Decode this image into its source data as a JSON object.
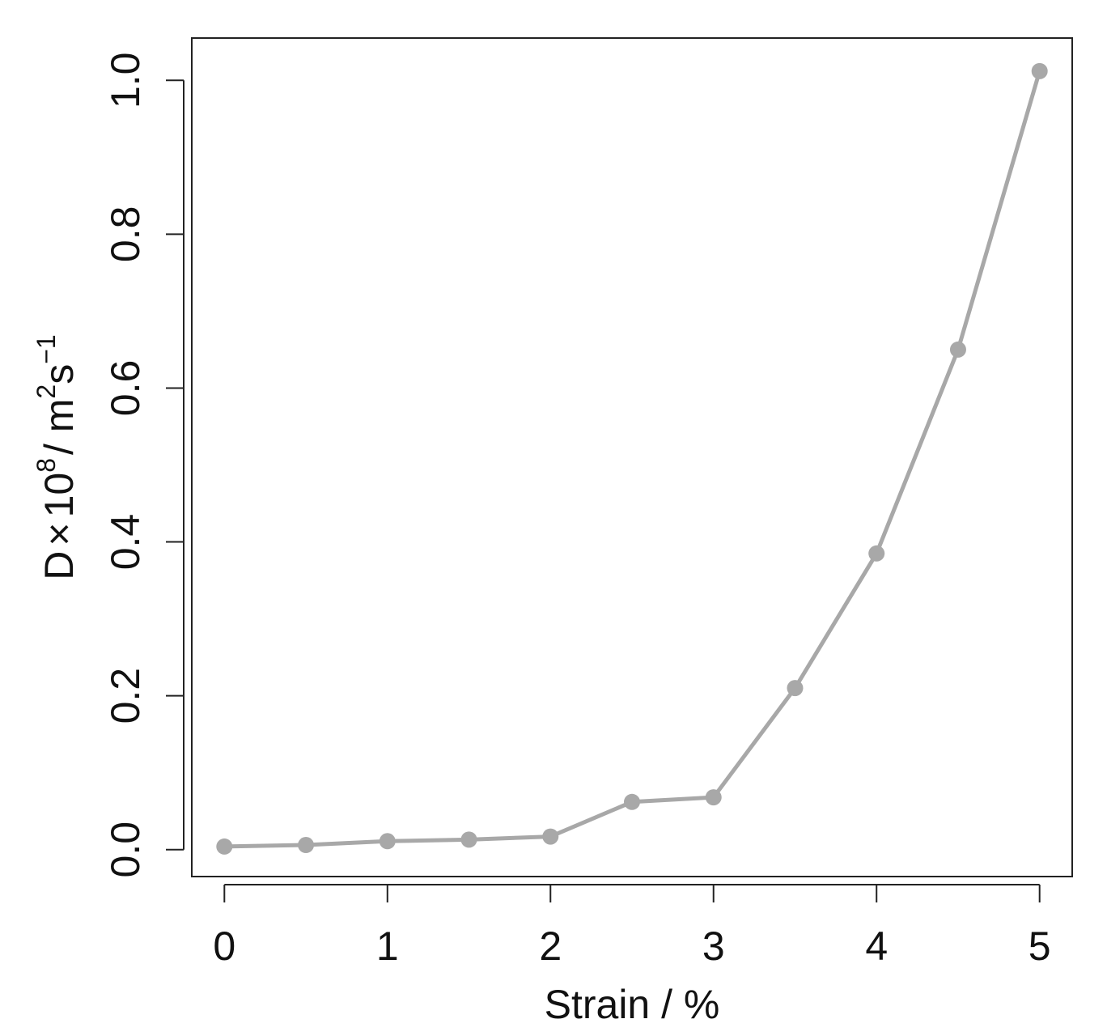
{
  "chart_data": {
    "type": "line",
    "title": "",
    "xlabel": "Strain / %",
    "ylabel": {
      "base": "D",
      "times": "×",
      "ten": "10",
      "exp8": "8",
      "unit_m": "/ m",
      "exp2": "2",
      "unit_s": "s",
      "exp_neg1": "−1"
    },
    "xlim": [
      -0.2,
      5.2
    ],
    "ylim": [
      -0.035,
      1.055
    ],
    "xticks": [
      0,
      1,
      2,
      3,
      4,
      5
    ],
    "xtick_labels": [
      "0",
      "1",
      "2",
      "3",
      "4",
      "5"
    ],
    "yticks": [
      0.0,
      0.2,
      0.4,
      0.6,
      0.8,
      1.0
    ],
    "ytick_labels": [
      "0.0",
      "0.2",
      "0.4",
      "0.6",
      "0.8",
      "1.0"
    ],
    "grid": false,
    "legend": "none",
    "series": [
      {
        "color": "#a8a8a8",
        "x": [
          0,
          0.5,
          1,
          1.5,
          2,
          2.5,
          3,
          3.5,
          4,
          4.5,
          5
        ],
        "y": [
          0.004,
          0.006,
          0.011,
          0.013,
          0.017,
          0.062,
          0.068,
          0.21,
          0.385,
          0.65,
          1.012
        ]
      }
    ]
  }
}
